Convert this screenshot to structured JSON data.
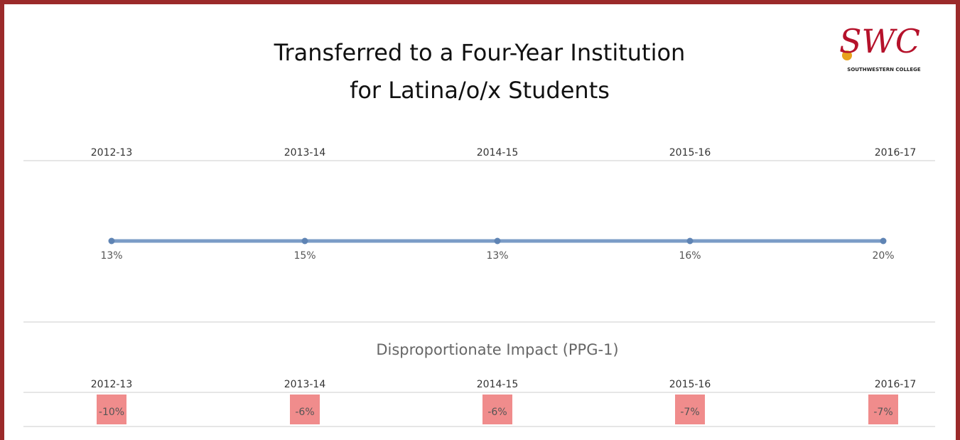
{
  "header": {
    "title_lines": [
      "Transferred to a Four-Year Institution",
      "for Latina/o/x Students"
    ],
    "logo": "SWC",
    "logo_caption": "SOUTHWESTERN COLLEGE"
  },
  "trend": {
    "years": [
      "2012-13",
      "2013-14",
      "2014-15",
      "2015-16",
      "2016-17"
    ],
    "values": [
      "13%",
      "15%",
      "13%",
      "16%",
      "20%"
    ]
  },
  "impact": {
    "title": "Disproportionate Impact (PPG-1)",
    "years": [
      "2012-13",
      "2013-14",
      "2014-15",
      "2015-16",
      "2016-17"
    ],
    "values": [
      "-10%",
      "-6%",
      "-6%",
      "-7%",
      "-7%"
    ]
  }
}
